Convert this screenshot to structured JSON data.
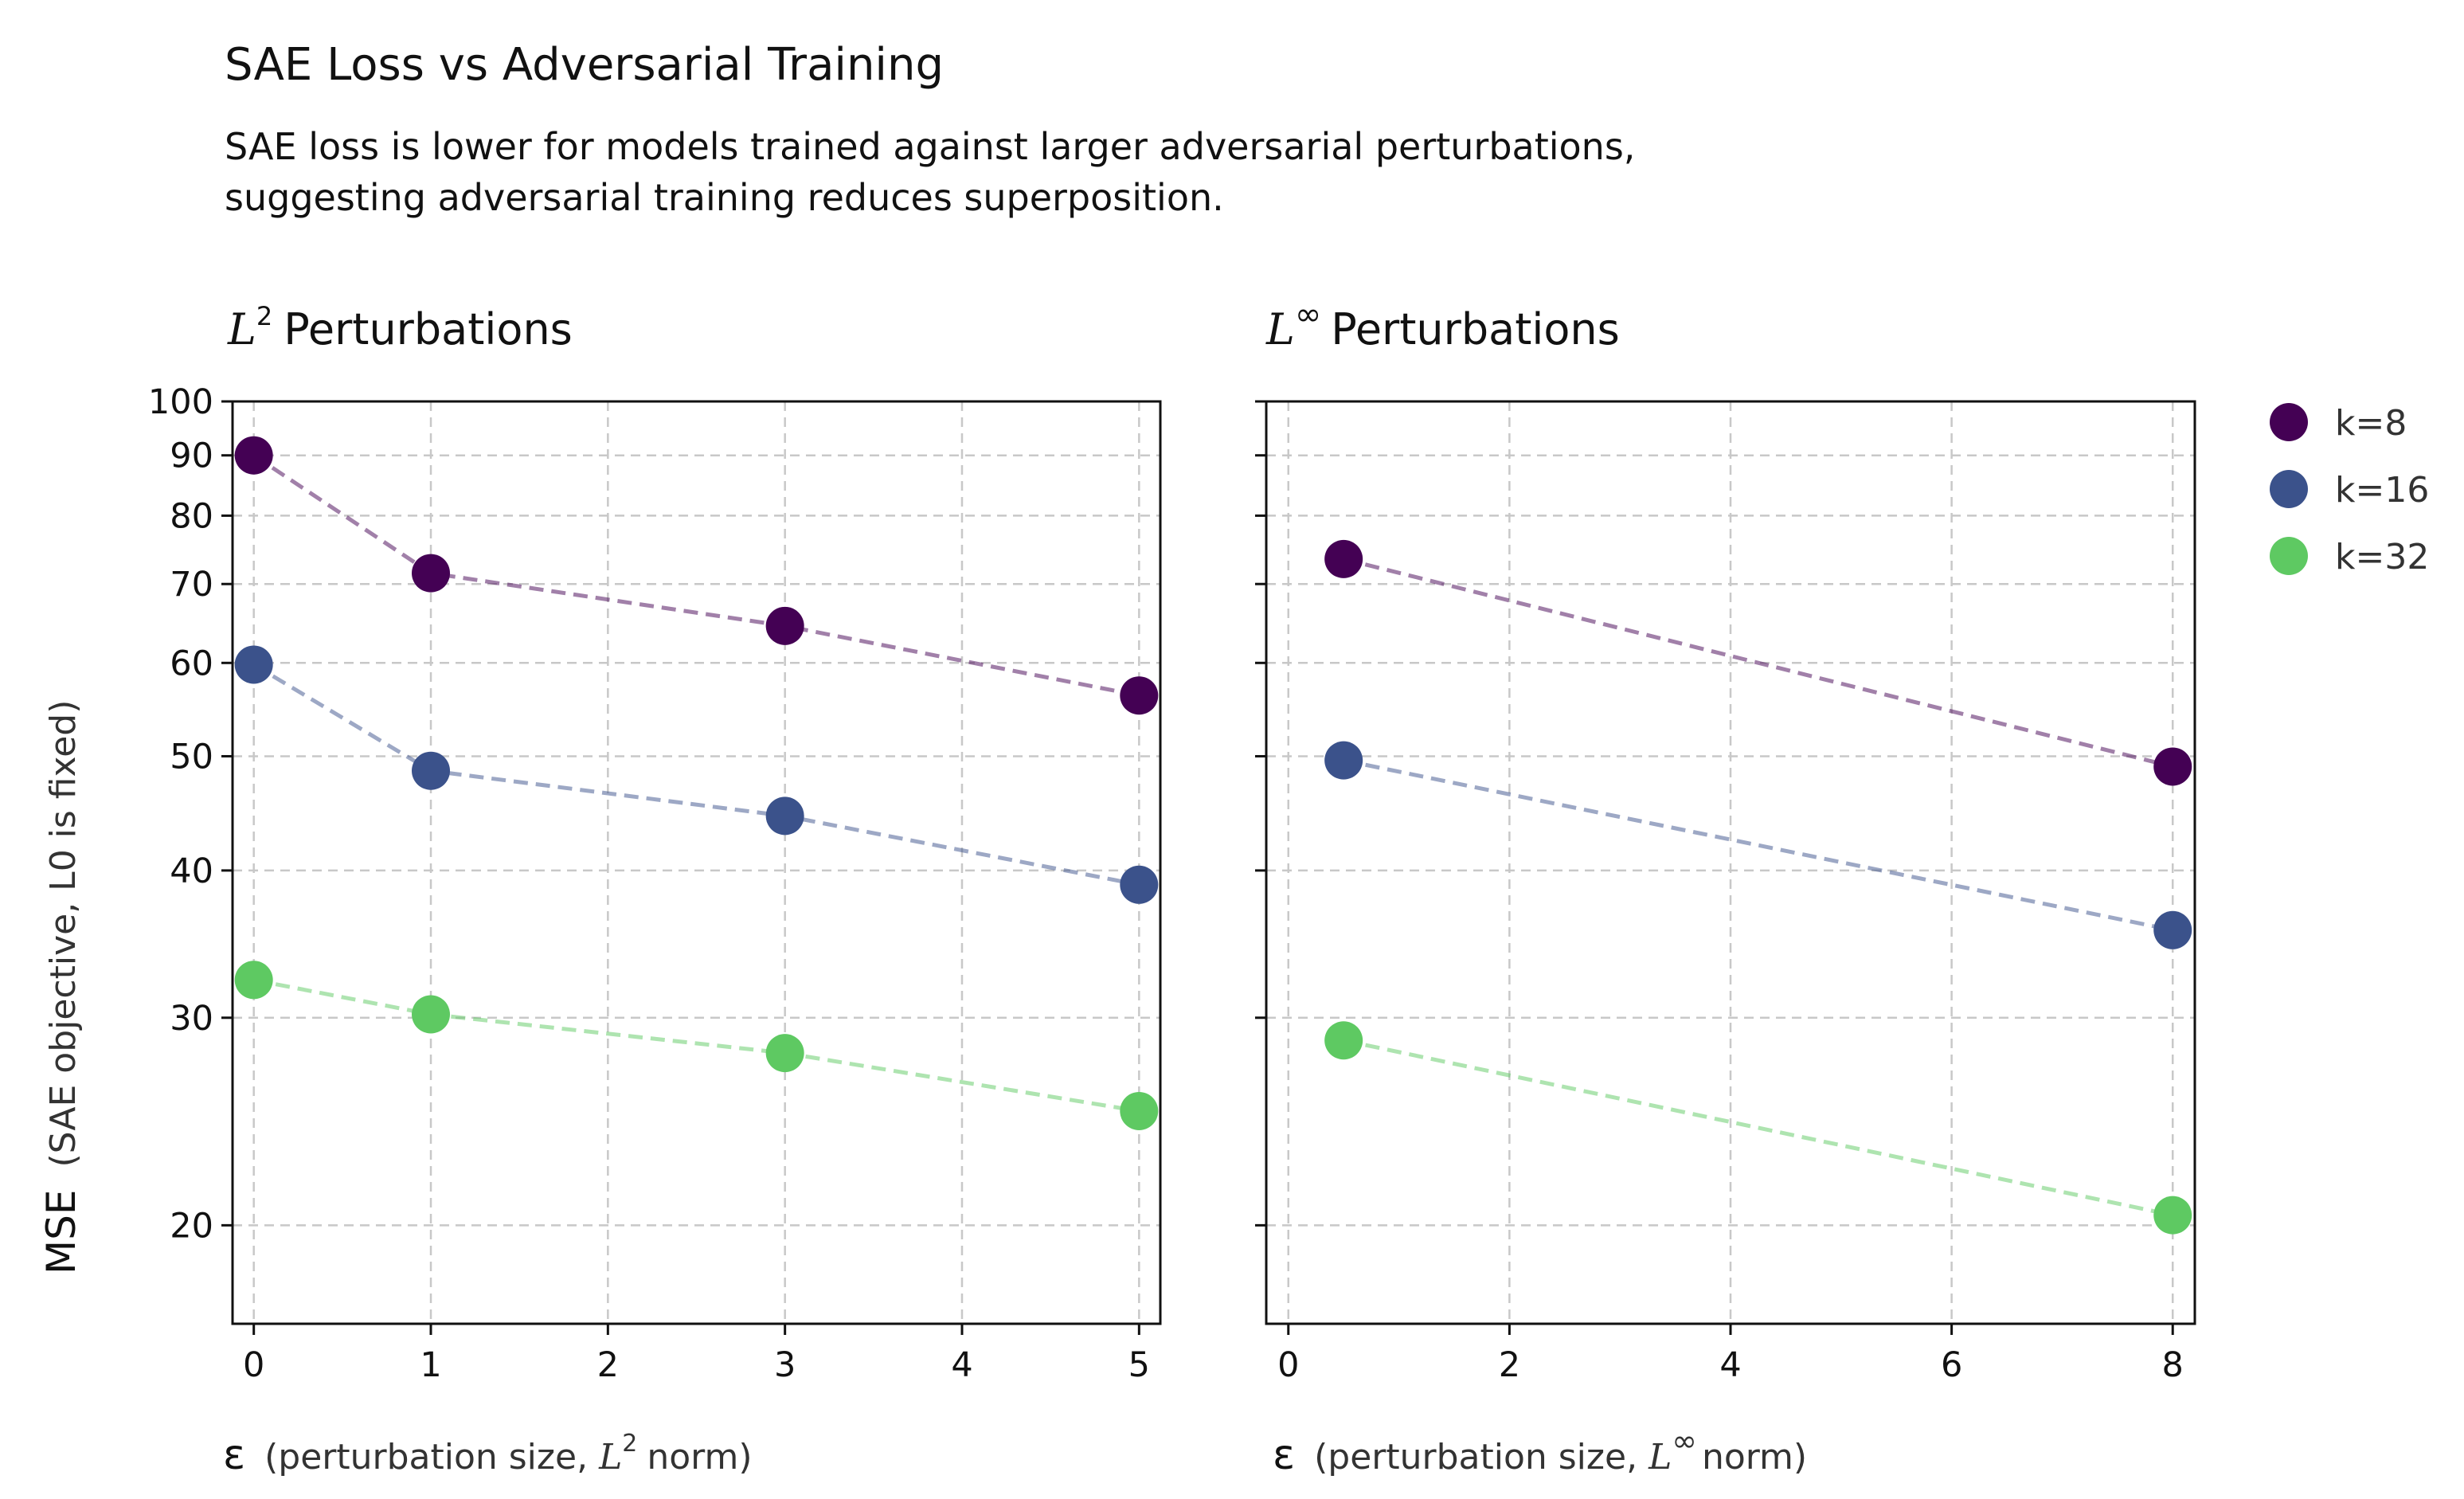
{
  "title": "SAE Loss vs Adversarial Training",
  "subtitle_lines": [
    "SAE loss is lower for models trained against larger adversarial perturbations,",
    "suggesting adversarial training reduces superposition."
  ],
  "y_axis": {
    "main_label": "MSE",
    "sub_label": "(SAE objective, L0 is fixed)"
  },
  "legend": [
    "k=8",
    "k=16",
    "k=32"
  ],
  "colors": {
    "k8": "#440154",
    "k16": "#3b528b",
    "k32": "#5ec962",
    "grid": "#c8c8c8",
    "axis": "#111111"
  },
  "chart_data": [
    {
      "type": "scatter",
      "panel_title": {
        "math": "L",
        "sup": "2",
        "rest": "Perturbations"
      },
      "xlabel": {
        "symbol": "ε",
        "prefix": "(perturbation size,",
        "math": "L",
        "sup": "2",
        "suffix": "norm)"
      },
      "xticks": [
        "0",
        "1",
        "2",
        "3",
        "4",
        "5"
      ],
      "xlim": [
        -0.12,
        5.12
      ],
      "yscale": "log",
      "ylim": [
        16.5,
        100
      ],
      "yticks": [
        "20",
        "30",
        "40",
        "50",
        "60",
        "70",
        "80",
        "90",
        "100"
      ],
      "grid": true,
      "x": [
        0,
        1,
        3,
        5
      ],
      "series": [
        {
          "name": "k=8",
          "values": [
            90,
            71.5,
            64.5,
            56.3
          ]
        },
        {
          "name": "k=16",
          "values": [
            59.8,
            48.6,
            44.5,
            38.9
          ]
        },
        {
          "name": "k=32",
          "values": [
            32.3,
            30.2,
            28.0,
            25.0
          ]
        }
      ]
    },
    {
      "type": "scatter",
      "panel_title": {
        "math": "L",
        "sup": "∞",
        "rest": "Perturbations"
      },
      "xlabel": {
        "symbol": "ε",
        "prefix": "(perturbation size,",
        "math": "L",
        "sup": "∞",
        "suffix": "norm)"
      },
      "xticks": [
        "0",
        "2",
        "4",
        "6",
        "8"
      ],
      "xlim": [
        -0.2,
        8.2
      ],
      "yscale": "log",
      "ylim": [
        16.5,
        100
      ],
      "grid": true,
      "x": [
        0.5,
        8
      ],
      "series": [
        {
          "name": "k=8",
          "values": [
            73.5,
            49.0
          ]
        },
        {
          "name": "k=16",
          "values": [
            49.6,
            35.6
          ]
        },
        {
          "name": "k=32",
          "values": [
            28.7,
            20.4
          ]
        }
      ]
    }
  ]
}
